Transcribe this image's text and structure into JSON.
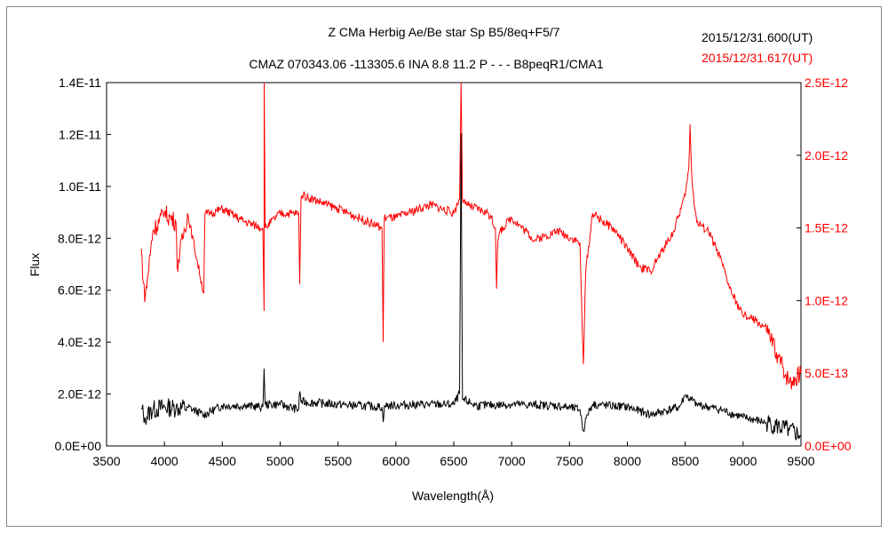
{
  "chart_data": {
    "type": "line",
    "title": "Z CMa    Herbig Ae/Be star    Sp B5/8eq+F5/7",
    "subtitle": "CMAZ 070343.06 -113305.6 INA 8.8 11.2 P - - - B8peqR1/CMA1",
    "xlabel": "Wavelength(Å)",
    "ylabel": "Flux",
    "xlim": [
      3500,
      9500
    ],
    "ylim_left": [
      0,
      1.4e-11
    ],
    "ylim_right": [
      0,
      2.5e-12
    ],
    "x_ticks": [
      "3500",
      "4000",
      "4500",
      "5000",
      "5500",
      "6000",
      "6500",
      "7000",
      "7500",
      "8000",
      "8500",
      "9000",
      "9500"
    ],
    "y_left_ticks": [
      "0.0E+00",
      "2.0E-12",
      "4.0E-12",
      "6.0E-12",
      "8.0E-12",
      "1.0E-11",
      "1.2E-11",
      "1.4E-11"
    ],
    "y_right_ticks": [
      "0.0E+00",
      "5.0E-13",
      "1.0E-12",
      "1.5E-12",
      "2.0E-12",
      "2.5E-12"
    ],
    "grid": false,
    "legend": [
      {
        "name": "2015/12/31.600(UT)",
        "color": "#000000",
        "axis": "left"
      },
      {
        "name": "2015/12/31.617(UT)",
        "color": "#ff0000",
        "axis": "right"
      }
    ],
    "series": [
      {
        "name": "2015/12/31.600(UT)",
        "color": "#000000",
        "axis": "left",
        "unit": "E-12",
        "x": [
          3800,
          3830,
          3900,
          4000,
          4100,
          4200,
          4340,
          4500,
          4700,
          4850,
          4861,
          4870,
          5000,
          5160,
          5169,
          5180,
          5500,
          5880,
          5890,
          5900,
          6200,
          6500,
          6550,
          6563,
          6575,
          6700,
          7000,
          7400,
          7590,
          7620,
          7650,
          7700,
          8000,
          8200,
          8450,
          8500,
          8600,
          8800,
          9000,
          9200,
          9400,
          9500
        ],
        "y": [
          1.44,
          1.1,
          1.4,
          1.5,
          1.45,
          1.5,
          1.2,
          1.55,
          1.55,
          1.5,
          2.98,
          1.6,
          1.6,
          1.4,
          2.1,
          1.7,
          1.6,
          1.5,
          0.92,
          1.55,
          1.6,
          1.6,
          2.0,
          12.05,
          1.8,
          1.55,
          1.6,
          1.55,
          1.4,
          0.58,
          1.2,
          1.6,
          1.5,
          1.2,
          1.5,
          1.95,
          1.6,
          1.4,
          1.1,
          0.9,
          0.6,
          0.41
        ]
      },
      {
        "name": "2015/12/31.617(UT)",
        "color": "#ff0000",
        "axis": "right",
        "unit": "E-12",
        "x": [
          3800,
          3830,
          3900,
          4000,
          4100,
          4110,
          4200,
          4340,
          4350,
          4400,
          4500,
          4700,
          4850,
          4861,
          4862,
          4870,
          5000,
          5160,
          5169,
          5180,
          5200,
          5500,
          5880,
          5890,
          5900,
          6000,
          6300,
          6500,
          6550,
          6563,
          6575,
          6600,
          6800,
          6860,
          6870,
          6880,
          6900,
          7000,
          7200,
          7400,
          7590,
          7610,
          7620,
          7640,
          7700,
          7900,
          8000,
          8100,
          8200,
          8400,
          8500,
          8530,
          8542,
          8560,
          8600,
          8700,
          8800,
          8900,
          9000,
          9100,
          9200,
          9300,
          9400,
          9500
        ],
        "y": [
          1.357,
          0.99,
          1.479,
          1.601,
          1.54,
          1.235,
          1.601,
          1.05,
          1.6,
          1.601,
          1.632,
          1.54,
          1.5,
          0.929,
          2.5,
          1.5,
          1.601,
          1.6,
          1.112,
          1.7,
          1.724,
          1.632,
          1.5,
          0.715,
          1.571,
          1.571,
          1.662,
          1.601,
          1.7,
          2.5,
          1.7,
          1.662,
          1.601,
          1.5,
          1.082,
          1.4,
          1.479,
          1.571,
          1.418,
          1.479,
          1.4,
          0.8,
          0.562,
          1.2,
          1.601,
          1.479,
          1.357,
          1.235,
          1.204,
          1.479,
          1.724,
          1.9,
          2.213,
          1.8,
          1.54,
          1.479,
          1.296,
          1.05,
          0.898,
          0.868,
          0.807,
          0.623,
          0.44,
          0.501
        ]
      }
    ]
  }
}
